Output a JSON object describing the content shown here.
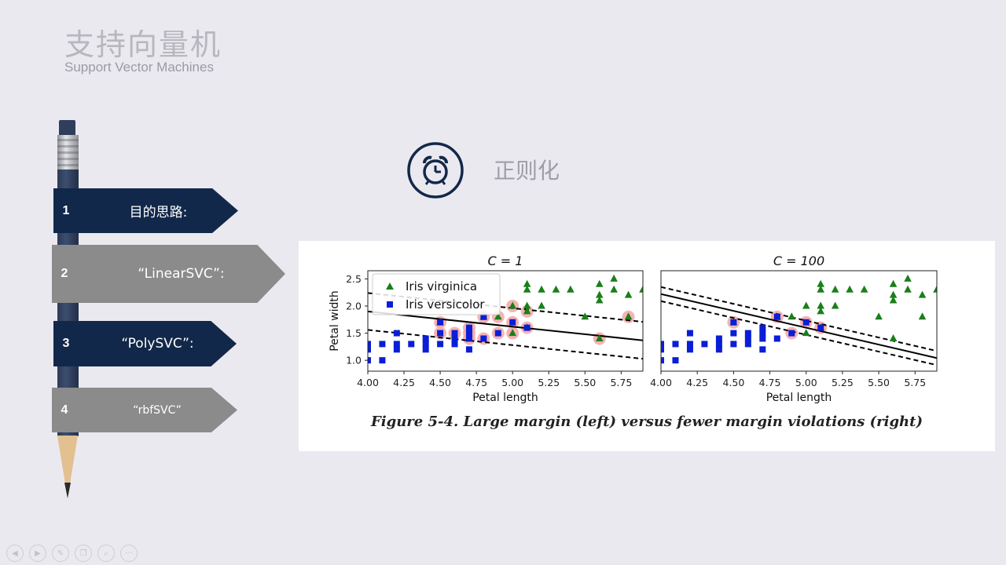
{
  "header": {
    "title": "支持向量机",
    "subtitle": "Support Vector Machines"
  },
  "steps": [
    {
      "num": "1",
      "label": "目的思路:"
    },
    {
      "num": "2",
      "label": "“LinearSVC”:"
    },
    {
      "num": "3",
      "label": "“PolySVC”:"
    },
    {
      "num": "4",
      "label": "“rbfSVC”"
    }
  ],
  "section": {
    "title": "正则化",
    "icon": "alarm-clock-icon"
  },
  "figure": {
    "caption": "Figure 5-4. Large margin (left) versus fewer margin violations (right)"
  },
  "colors": {
    "dark_step": "#12284a",
    "gray_step": "#8b8b8b",
    "virginica": "#1a7f1a",
    "versicolor": "#0a1ed6",
    "support_vector": "#f4a6a6"
  },
  "bottom_controls": [
    "prev-icon",
    "next-icon",
    "pen-icon",
    "copy-icon",
    "zoom-icon",
    "more-icon"
  ],
  "chart_data": [
    {
      "type": "scatter",
      "title": "C = 1",
      "xlabel": "Petal length",
      "ylabel": "Petal width",
      "xlim": [
        4.0,
        5.9
      ],
      "ylim": [
        0.8,
        2.65
      ],
      "xticks": [
        "4.00",
        "4.25",
        "4.50",
        "4.75",
        "5.00",
        "5.25",
        "5.50",
        "5.75"
      ],
      "yticks": [
        "1.0",
        "1.5",
        "2.0",
        "2.5"
      ],
      "legend": {
        "position": "top-left",
        "entries": [
          "Iris virginica",
          "Iris versicolor"
        ]
      },
      "series": [
        {
          "name": "Iris virginica",
          "marker": "triangle",
          "points": [
            [
              4.5,
              1.7
            ],
            [
              4.8,
              1.8
            ],
            [
              4.9,
              1.8
            ],
            [
              5.0,
              1.5
            ],
            [
              5.0,
              2.0
            ],
            [
              5.1,
              1.6
            ],
            [
              5.1,
              1.9
            ],
            [
              5.1,
              2.0
            ],
            [
              5.1,
              2.3
            ],
            [
              5.1,
              2.4
            ],
            [
              5.2,
              2.0
            ],
            [
              5.2,
              2.3
            ],
            [
              5.3,
              2.3
            ],
            [
              5.4,
              2.3
            ],
            [
              5.5,
              1.8
            ],
            [
              5.6,
              1.4
            ],
            [
              5.6,
              2.1
            ],
            [
              5.6,
              2.2
            ],
            [
              5.6,
              2.4
            ],
            [
              5.7,
              2.3
            ],
            [
              5.7,
              2.5
            ],
            [
              5.8,
              1.8
            ],
            [
              5.8,
              2.2
            ],
            [
              5.9,
              2.3
            ]
          ]
        },
        {
          "name": "Iris versicolor",
          "marker": "square",
          "points": [
            [
              4.0,
              1.0
            ],
            [
              4.0,
              1.2
            ],
            [
              4.0,
              1.3
            ],
            [
              4.1,
              1.0
            ],
            [
              4.1,
              1.3
            ],
            [
              4.2,
              1.2
            ],
            [
              4.2,
              1.3
            ],
            [
              4.2,
              1.5
            ],
            [
              4.3,
              1.3
            ],
            [
              4.4,
              1.2
            ],
            [
              4.4,
              1.3
            ],
            [
              4.4,
              1.4
            ],
            [
              4.5,
              1.3
            ],
            [
              4.5,
              1.5
            ],
            [
              4.5,
              1.7
            ],
            [
              4.6,
              1.3
            ],
            [
              4.6,
              1.4
            ],
            [
              4.6,
              1.5
            ],
            [
              4.7,
              1.2
            ],
            [
              4.7,
              1.4
            ],
            [
              4.7,
              1.5
            ],
            [
              4.7,
              1.6
            ],
            [
              4.8,
              1.4
            ],
            [
              4.8,
              1.8
            ],
            [
              4.9,
              1.5
            ],
            [
              5.0,
              1.7
            ],
            [
              5.1,
              1.6
            ]
          ]
        }
      ],
      "support_vectors": [
        [
          4.5,
          1.7
        ],
        [
          4.5,
          1.5
        ],
        [
          4.6,
          1.5
        ],
        [
          4.7,
          1.4
        ],
        [
          4.7,
          1.5
        ],
        [
          4.7,
          1.6
        ],
        [
          4.8,
          1.4
        ],
        [
          4.8,
          1.8
        ],
        [
          4.9,
          1.5
        ],
        [
          4.9,
          1.8
        ],
        [
          5.0,
          1.5
        ],
        [
          5.0,
          1.7
        ],
        [
          5.0,
          2.0
        ],
        [
          5.1,
          1.6
        ],
        [
          5.1,
          1.9
        ],
        [
          5.6,
          1.4
        ],
        [
          5.8,
          1.8
        ]
      ],
      "decision_boundary": {
        "slope": -0.28,
        "intercept": 3.02,
        "margin": 0.34
      }
    },
    {
      "type": "scatter",
      "title": "C = 100",
      "xlabel": "Petal length",
      "ylabel": "",
      "xlim": [
        4.0,
        5.9
      ],
      "ylim": [
        0.8,
        2.65
      ],
      "xticks": [
        "4.00",
        "4.25",
        "4.50",
        "4.75",
        "5.00",
        "5.25",
        "5.50",
        "5.75"
      ],
      "yticks": [],
      "series": [
        {
          "name": "Iris virginica",
          "marker": "triangle",
          "points": [
            [
              4.5,
              1.7
            ],
            [
              4.8,
              1.8
            ],
            [
              4.9,
              1.8
            ],
            [
              5.0,
              1.5
            ],
            [
              5.0,
              2.0
            ],
            [
              5.1,
              1.6
            ],
            [
              5.1,
              1.9
            ],
            [
              5.1,
              2.0
            ],
            [
              5.1,
              2.3
            ],
            [
              5.1,
              2.4
            ],
            [
              5.2,
              2.0
            ],
            [
              5.2,
              2.3
            ],
            [
              5.3,
              2.3
            ],
            [
              5.4,
              2.3
            ],
            [
              5.5,
              1.8
            ],
            [
              5.6,
              1.4
            ],
            [
              5.6,
              2.1
            ],
            [
              5.6,
              2.2
            ],
            [
              5.6,
              2.4
            ],
            [
              5.7,
              2.3
            ],
            [
              5.7,
              2.5
            ],
            [
              5.8,
              1.8
            ],
            [
              5.8,
              2.2
            ],
            [
              5.9,
              2.3
            ]
          ]
        },
        {
          "name": "Iris versicolor",
          "marker": "square",
          "points": [
            [
              4.0,
              1.0
            ],
            [
              4.0,
              1.2
            ],
            [
              4.0,
              1.3
            ],
            [
              4.1,
              1.0
            ],
            [
              4.1,
              1.3
            ],
            [
              4.2,
              1.2
            ],
            [
              4.2,
              1.3
            ],
            [
              4.2,
              1.5
            ],
            [
              4.3,
              1.3
            ],
            [
              4.4,
              1.2
            ],
            [
              4.4,
              1.3
            ],
            [
              4.4,
              1.4
            ],
            [
              4.5,
              1.3
            ],
            [
              4.5,
              1.5
            ],
            [
              4.5,
              1.7
            ],
            [
              4.6,
              1.3
            ],
            [
              4.6,
              1.4
            ],
            [
              4.6,
              1.5
            ],
            [
              4.7,
              1.2
            ],
            [
              4.7,
              1.4
            ],
            [
              4.7,
              1.5
            ],
            [
              4.7,
              1.6
            ],
            [
              4.8,
              1.4
            ],
            [
              4.8,
              1.8
            ],
            [
              4.9,
              1.5
            ],
            [
              5.0,
              1.7
            ],
            [
              5.1,
              1.6
            ]
          ]
        }
      ],
      "support_vectors": [
        [
          4.5,
          1.7
        ],
        [
          4.8,
          1.8
        ],
        [
          4.9,
          1.5
        ],
        [
          5.0,
          1.7
        ],
        [
          5.1,
          1.6
        ]
      ],
      "decision_boundary": {
        "slope": -0.62,
        "intercept": 4.7,
        "margin": 0.13
      }
    }
  ]
}
